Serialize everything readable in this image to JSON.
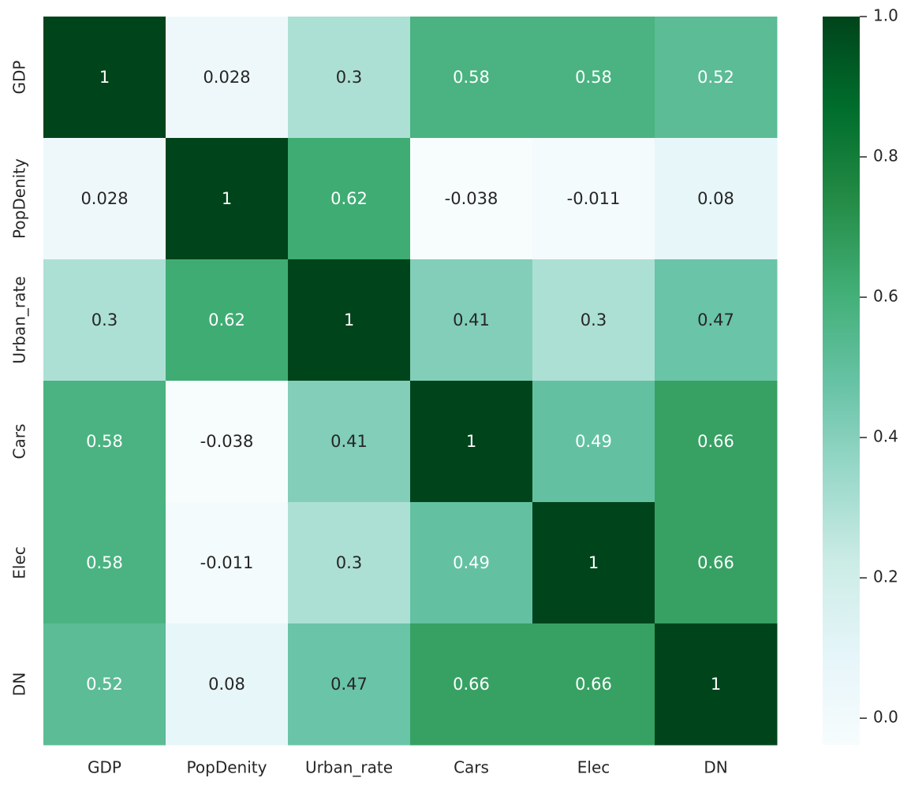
{
  "chart_data": {
    "type": "heatmap",
    "title": "",
    "xlabel": "",
    "ylabel": "",
    "x_categories": [
      "GDP",
      "PopDenity",
      "Urban_rate",
      "Cars",
      "Elec",
      "DN"
    ],
    "y_categories": [
      "GDP",
      "PopDenity",
      "Urban_rate",
      "Cars",
      "Elec",
      "DN"
    ],
    "values": [
      [
        1,
        0.028,
        0.3,
        0.58,
        0.58,
        0.52
      ],
      [
        0.028,
        1,
        0.62,
        -0.038,
        -0.011,
        0.08
      ],
      [
        0.3,
        0.62,
        1,
        0.41,
        0.3,
        0.47
      ],
      [
        0.58,
        -0.038,
        0.41,
        1,
        0.49,
        0.66
      ],
      [
        0.58,
        -0.011,
        0.3,
        0.49,
        1,
        0.66
      ],
      [
        0.52,
        0.08,
        0.47,
        0.66,
        0.66,
        1
      ]
    ],
    "value_labels": [
      [
        "1",
        "0.028",
        "0.3",
        "0.58",
        "0.58",
        "0.52"
      ],
      [
        "0.028",
        "1",
        "0.62",
        "-0.038",
        "-0.011",
        "0.08"
      ],
      [
        "0.3",
        "0.62",
        "1",
        "0.41",
        "0.3",
        "0.47"
      ],
      [
        "0.58",
        "-0.038",
        "0.41",
        "1",
        "0.49",
        "0.66"
      ],
      [
        "0.58",
        "-0.011",
        "0.3",
        "0.49",
        "1",
        "0.66"
      ],
      [
        "0.52",
        "0.08",
        "0.47",
        "0.66",
        "0.66",
        "1"
      ]
    ],
    "colormap": "BuGn",
    "color_range": [
      -0.038,
      1
    ],
    "colorbar": {
      "ticks": [
        0.0,
        0.2,
        0.4,
        0.6,
        0.8,
        1.0
      ],
      "tick_labels": [
        "0.0",
        "0.2",
        "0.4",
        "0.6",
        "0.8",
        "1.0"
      ]
    },
    "annotation_colors": {
      "dark_text": "#262626",
      "light_text": "#ffffff"
    },
    "grid": false
  }
}
